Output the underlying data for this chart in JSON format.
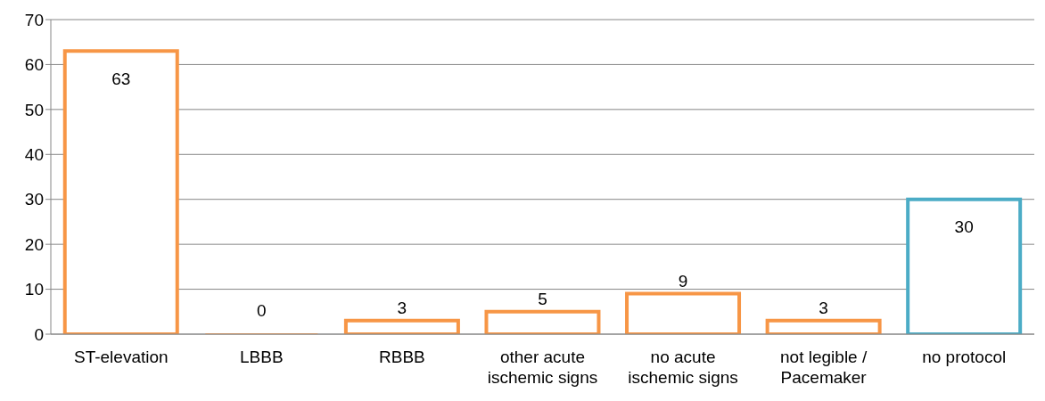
{
  "chart_data": {
    "type": "bar",
    "categories": [
      "ST-elevation",
      "LBBB",
      "RBBB",
      "other acute ischemic signs",
      "no acute ischemic signs",
      "not legible / Pacemaker",
      "no protocol"
    ],
    "values": [
      63,
      0,
      3,
      5,
      9,
      3,
      30
    ],
    "colors": [
      "#f79646",
      "#f79646",
      "#f79646",
      "#f79646",
      "#f79646",
      "#f79646",
      "#4bacc6"
    ],
    "ylim": [
      0,
      70
    ],
    "yticks": [
      0,
      10,
      20,
      30,
      40,
      50,
      60,
      70
    ],
    "grid": "y",
    "data_labels": true
  }
}
